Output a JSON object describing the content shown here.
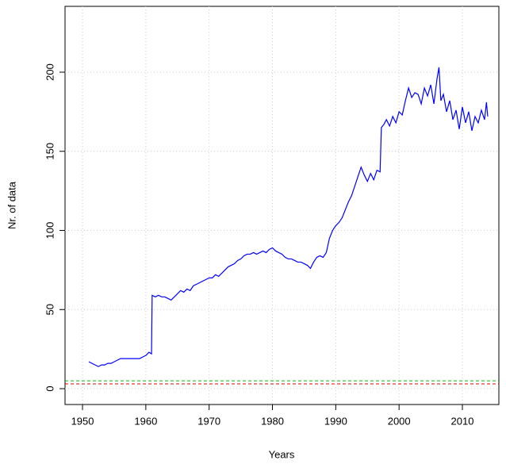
{
  "chart_data": {
    "type": "line",
    "xlabel": "Years",
    "ylabel": "Nr. of data",
    "x": [
      1951.0,
      1951.5,
      1952,
      1952.5,
      1953,
      1953.5,
      1954,
      1954.5,
      1955,
      1955.5,
      1956,
      1956.5,
      1957,
      1957.5,
      1958,
      1958.5,
      1959,
      1959.5,
      1960,
      1960.5,
      1960.9,
      1961.0,
      1961.5,
      1962,
      1962.5,
      1963,
      1963.5,
      1964,
      1964.5,
      1965,
      1965.5,
      1966,
      1966.5,
      1967,
      1967.5,
      1968,
      1968.5,
      1969,
      1969.5,
      1970,
      1970.5,
      1971,
      1971.5,
      1972,
      1972.5,
      1973,
      1973.5,
      1974,
      1974.5,
      1975,
      1975.5,
      1976,
      1976.5,
      1977,
      1977.5,
      1978,
      1978.5,
      1979,
      1979.5,
      1980,
      1980.5,
      1981,
      1981.5,
      1982,
      1982.5,
      1983,
      1983.5,
      1984,
      1984.5,
      1985,
      1985.5,
      1986,
      1986.5,
      1987,
      1987.5,
      1988,
      1988.5,
      1989,
      1989.5,
      1990,
      1990.5,
      1991,
      1991.5,
      1992,
      1992.5,
      1993,
      1993.5,
      1994,
      1994.5,
      1995,
      1995.5,
      1996,
      1996.5,
      1997,
      1997.2,
      1997.6,
      1998,
      1998.5,
      1999,
      1999.5,
      2000,
      2000.5,
      2001,
      2001.5,
      2002,
      2002.5,
      2003,
      2003.5,
      2004,
      2004.5,
      2005,
      2005.5,
      2006,
      2006.3,
      2006.6,
      2007,
      2007.5,
      2008,
      2008.5,
      2009,
      2009.5,
      2010,
      2010.5,
      2011,
      2011.5,
      2012,
      2012.5,
      2013,
      2013.5,
      2013.8,
      2014
    ],
    "series": [
      {
        "color": "#0000ff",
        "values": [
          17,
          16,
          15,
          14,
          15,
          15,
          16,
          16,
          17,
          18,
          19,
          19,
          19,
          19,
          19,
          19,
          19,
          20,
          21,
          23,
          22,
          59,
          58,
          59,
          58,
          58,
          57,
          56,
          58,
          60,
          62,
          61,
          63,
          62,
          65,
          66,
          67,
          68,
          69,
          70,
          70,
          72,
          71,
          73,
          75,
          77,
          78,
          79,
          81,
          82,
          84,
          85,
          85,
          86,
          85,
          86,
          87,
          86,
          88,
          89,
          87,
          86,
          85,
          83,
          82,
          82,
          81,
          80,
          80,
          79,
          78,
          76,
          80,
          83,
          84,
          83,
          86,
          95,
          100,
          103,
          105,
          108,
          113,
          118,
          122,
          128,
          134,
          140,
          135,
          131,
          136,
          132,
          138,
          137,
          165,
          167,
          170,
          166,
          172,
          168,
          175,
          173,
          182,
          190,
          184,
          187,
          186,
          180,
          190,
          185,
          192,
          180,
          196,
          203,
          182,
          186,
          175,
          182,
          170,
          176,
          164,
          178,
          168,
          175,
          163,
          172,
          168,
          176,
          170,
          181,
          172
        ]
      }
    ],
    "hlines": [
      {
        "value": 5,
        "color": "#00bb00"
      },
      {
        "value": 3,
        "color": "#dd0000"
      }
    ],
    "xlim": [
      1947.24,
      2015.76
    ],
    "xticks": [
      1950,
      1960,
      1970,
      1980,
      1990,
      2000,
      2010
    ],
    "ylim": [
      -10,
      241.6
    ],
    "yticks": [
      0,
      50,
      100,
      150,
      200
    ],
    "grid": true
  }
}
